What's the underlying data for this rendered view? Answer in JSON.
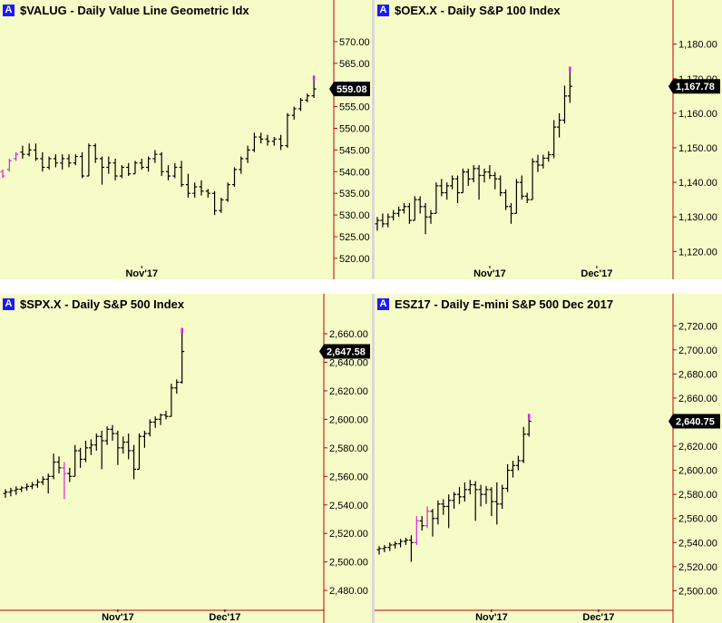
{
  "colors": {
    "background": "#f5fcc8",
    "bar": "#000000",
    "highlight_bar": "#e020e0",
    "axis_line": "#c00000",
    "badge": "#1a1aff",
    "last_price_box": "#000000"
  },
  "chart_data": [
    {
      "type": "ohlc",
      "badge": "A",
      "title": "$VALUG - Daily  Value Line Geometric Idx",
      "y_ticks": [
        520,
        525,
        530,
        535,
        540,
        545,
        550,
        555,
        560,
        565,
        570
      ],
      "y_tick_labels": [
        "520.00",
        "525.00",
        "530.00",
        "535.00",
        "540.00",
        "545.00",
        "550.00",
        "555.00",
        "560.00",
        "565.00",
        "570.00"
      ],
      "ylim": [
        516,
        575
      ],
      "x_ticks": [
        {
          "label": "Nov'17",
          "index": 21
        }
      ],
      "last_label": "559.08",
      "last_value": 559.08,
      "grid": false,
      "highlight_indices": [
        0,
        1,
        2,
        67
      ],
      "bars": [
        [
          540,
          540.5,
          538.5,
          539.0
        ],
        [
          540.5,
          543.0,
          540.0,
          542.5
        ],
        [
          543.0,
          544.5,
          542.5,
          544.0
        ],
        [
          544.5,
          546.0,
          543.0,
          544.0
        ],
        [
          544.0,
          546.5,
          543.5,
          545.0
        ],
        [
          545.0,
          546.5,
          542.5,
          543.0
        ],
        [
          543.0,
          544.5,
          540.0,
          541.0
        ],
        [
          541.0,
          543.5,
          540.5,
          543.0
        ],
        [
          543.0,
          544.0,
          541.0,
          542.0
        ],
        [
          542.0,
          544.0,
          540.5,
          543.0
        ],
        [
          543.0,
          544.0,
          541.0,
          542.0
        ],
        [
          542.0,
          544.0,
          541.5,
          543.5
        ],
        [
          543.5,
          544.5,
          538.5,
          539.0
        ],
        [
          539.0,
          546.5,
          539.0,
          546.0
        ],
        [
          546.0,
          546.5,
          542.0,
          543.0
        ],
        [
          543.0,
          543.5,
          537.0,
          541.0
        ],
        [
          541.0,
          543.5,
          539.5,
          542.0
        ],
        [
          542.0,
          543.0,
          538.0,
          539.0
        ],
        [
          539.0,
          541.5,
          538.5,
          541.0
        ],
        [
          541.0,
          542.0,
          539.0,
          539.5
        ],
        [
          539.5,
          542.5,
          539.5,
          542.0
        ],
        [
          542.0,
          543.0,
          540.5,
          541.0
        ],
        [
          541.0,
          543.5,
          540.0,
          543.0
        ],
        [
          543.0,
          545.0,
          542.0,
          544.0
        ],
        [
          544.0,
          544.5,
          539.0,
          540.0
        ],
        [
          540.0,
          541.5,
          538.0,
          539.0
        ],
        [
          539.0,
          542.0,
          538.5,
          541.0
        ],
        [
          541.0,
          542.5,
          536.5,
          537.0
        ],
        [
          537.0,
          539.5,
          534.0,
          535.0
        ],
        [
          535.0,
          537.5,
          534.0,
          536.5
        ],
        [
          536.5,
          538.0,
          534.5,
          535.5
        ],
        [
          535.5,
          536.0,
          534.0,
          535.0
        ],
        [
          535.0,
          535.5,
          530.0,
          531.0
        ],
        [
          531.0,
          534.0,
          530.5,
          533.5
        ],
        [
          533.5,
          537.5,
          533.0,
          537.0
        ],
        [
          537.0,
          541.0,
          536.5,
          540.5
        ],
        [
          540.5,
          543.5,
          539.5,
          543.0
        ],
        [
          543.0,
          546.0,
          542.0,
          545.0
        ],
        [
          545.0,
          549.0,
          544.5,
          548.0
        ],
        [
          548.0,
          549.0,
          546.5,
          547.5
        ],
        [
          547.5,
          548.5,
          546.0,
          547.0
        ],
        [
          547.0,
          548.0,
          546.0,
          547.5
        ],
        [
          547.5,
          548.5,
          545.0,
          546.0
        ],
        [
          546.0,
          553.5,
          545.5,
          553.0
        ],
        [
          553.0,
          555.0,
          552.0,
          554.5
        ],
        [
          554.5,
          557.0,
          554.0,
          556.5
        ],
        [
          556.5,
          558.0,
          556.0,
          557.5
        ],
        [
          557.5,
          561.0,
          557.0,
          559.08
        ]
      ]
    },
    {
      "type": "ohlc",
      "badge": "A",
      "title": "$OEX.X - Daily  S&P 100 Index",
      "y_ticks": [
        1120,
        1130,
        1140,
        1150,
        1160,
        1170,
        1180
      ],
      "y_tick_labels": [
        "1,120.00",
        "1,130.00",
        "1,140.00",
        "1,150.00",
        "1,160.00",
        "1,170.00",
        "1,180.00"
      ],
      "ylim": [
        1113,
        1187
      ],
      "x_ticks": [
        {
          "label": "Nov'17",
          "index": 21
        },
        {
          "label": "Dec'17",
          "index": 41
        }
      ],
      "last_label": "1,167.78",
      "last_value": 1167.78,
      "grid": false,
      "highlight_indices": [
        46
      ],
      "bars": [
        [
          1128,
          1130,
          1126,
          1129
        ],
        [
          1129,
          1131,
          1127,
          1128
        ],
        [
          1128,
          1131,
          1127,
          1130
        ],
        [
          1130,
          1132,
          1129,
          1131
        ],
        [
          1131,
          1133,
          1130,
          1132
        ],
        [
          1132,
          1134,
          1131,
          1133
        ],
        [
          1133,
          1134,
          1128,
          1129
        ],
        [
          1129,
          1136,
          1129,
          1135
        ],
        [
          1135,
          1136,
          1131,
          1133
        ],
        [
          1133,
          1134,
          1125,
          1130
        ],
        [
          1130,
          1132,
          1128,
          1131
        ],
        [
          1131,
          1140,
          1131,
          1139
        ],
        [
          1139,
          1141,
          1136,
          1137
        ],
        [
          1137,
          1140,
          1135,
          1139
        ],
        [
          1139,
          1142,
          1138,
          1141
        ],
        [
          1141,
          1142,
          1134,
          1137
        ],
        [
          1137,
          1144,
          1137,
          1143
        ],
        [
          1143,
          1144,
          1139,
          1141
        ],
        [
          1141,
          1145,
          1140,
          1144
        ],
        [
          1144,
          1145,
          1135,
          1142
        ],
        [
          1142,
          1144,
          1140,
          1143
        ],
        [
          1143,
          1145,
          1141,
          1142
        ],
        [
          1142,
          1143,
          1138,
          1141
        ],
        [
          1141,
          1142,
          1136,
          1137
        ],
        [
          1137,
          1138,
          1132,
          1133
        ],
        [
          1133,
          1134,
          1128,
          1131
        ],
        [
          1131,
          1141,
          1131,
          1140
        ],
        [
          1140,
          1142,
          1135,
          1136
        ],
        [
          1136,
          1137,
          1134,
          1135
        ],
        [
          1135,
          1147,
          1135,
          1146
        ],
        [
          1146,
          1148,
          1143,
          1145
        ],
        [
          1145,
          1148,
          1144,
          1147
        ],
        [
          1147,
          1149,
          1146,
          1148
        ],
        [
          1148,
          1158,
          1147,
          1156
        ],
        [
          1156,
          1160,
          1153,
          1158
        ],
        [
          1158,
          1168,
          1157,
          1165
        ],
        [
          1165,
          1172,
          1163,
          1167.78
        ]
      ]
    },
    {
      "type": "ohlc",
      "badge": "A",
      "title": "$SPX.X - Daily  S&P 500 Index",
      "y_ticks": [
        2480,
        2500,
        2520,
        2540,
        2560,
        2580,
        2600,
        2620,
        2640,
        2660
      ],
      "y_tick_labels": [
        "2,480.00",
        "2,500.00",
        "2,520.00",
        "2,540.00",
        "2,560.00",
        "2,580.00",
        "2,600.00",
        "2,620.00",
        "2,640.00",
        "2,660.00"
      ],
      "ylim": [
        2468,
        2674
      ],
      "x_ticks": [
        {
          "label": "Nov'17",
          "index": 21
        },
        {
          "label": "Dec'17",
          "index": 41
        }
      ],
      "last_label": "2,647.58",
      "last_value": 2647.58,
      "grid": false,
      "highlight_indices": [
        11,
        46
      ],
      "bars": [
        [
          2548,
          2551,
          2545,
          2549
        ],
        [
          2549,
          2552,
          2546,
          2550
        ],
        [
          2550,
          2553,
          2547,
          2551
        ],
        [
          2551,
          2553,
          2549,
          2552
        ],
        [
          2552,
          2555,
          2550,
          2553
        ],
        [
          2553,
          2556,
          2551,
          2554
        ],
        [
          2554,
          2558,
          2552,
          2556
        ],
        [
          2556,
          2560,
          2554,
          2558
        ],
        [
          2558,
          2562,
          2548,
          2560
        ],
        [
          2560,
          2576,
          2558,
          2570
        ],
        [
          2570,
          2574,
          2562,
          2566
        ],
        [
          2566,
          2570,
          2544,
          2562
        ],
        [
          2562,
          2566,
          2556,
          2560
        ],
        [
          2560,
          2582,
          2560,
          2578
        ],
        [
          2578,
          2580,
          2566,
          2572
        ],
        [
          2572,
          2585,
          2570,
          2580
        ],
        [
          2580,
          2586,
          2575,
          2582
        ],
        [
          2582,
          2590,
          2578,
          2588
        ],
        [
          2588,
          2592,
          2565,
          2585
        ],
        [
          2585,
          2595,
          2582,
          2593
        ],
        [
          2593,
          2596,
          2585,
          2590
        ],
        [
          2590,
          2592,
          2568,
          2580
        ],
        [
          2580,
          2588,
          2576,
          2584
        ],
        [
          2584,
          2590,
          2572,
          2578
        ],
        [
          2578,
          2582,
          2558,
          2565
        ],
        [
          2565,
          2590,
          2565,
          2588
        ],
        [
          2588,
          2592,
          2580,
          2590
        ],
        [
          2590,
          2600,
          2588,
          2598
        ],
        [
          2598,
          2602,
          2594,
          2600
        ],
        [
          2600,
          2604,
          2596,
          2603
        ],
        [
          2603,
          2606,
          2600,
          2602
        ],
        [
          2602,
          2625,
          2602,
          2622
        ],
        [
          2622,
          2628,
          2618,
          2626
        ],
        [
          2626,
          2660,
          2625,
          2647.58
        ]
      ]
    },
    {
      "type": "ohlc",
      "badge": "A",
      "title": "ESZ17 - Daily  E-mini S&P 500 Dec 2017",
      "y_ticks": [
        2500,
        2520,
        2540,
        2560,
        2580,
        2600,
        2620,
        2640,
        2660,
        2680,
        2700,
        2720
      ],
      "y_tick_labels": [
        "2,500.00",
        "2,520.00",
        "2,540.00",
        "2,560.00",
        "2,580.00",
        "2,600.00",
        "2,620.00",
        "2,640.00",
        "2,660.00",
        "2,680.00",
        "2,700.00",
        "2,720.00"
      ],
      "ylim": [
        2486,
        2730
      ],
      "x_ticks": [
        {
          "label": "Nov'17",
          "index": 21
        },
        {
          "label": "Dec'17",
          "index": 41
        }
      ],
      "last_label": "2,640.75",
      "last_value": 2640.75,
      "grid": false,
      "highlight_indices": [
        7,
        9,
        48
      ],
      "bars": [
        [
          2534,
          2537,
          2530,
          2535
        ],
        [
          2535,
          2538,
          2532,
          2536
        ],
        [
          2536,
          2540,
          2533,
          2538
        ],
        [
          2538,
          2541,
          2535,
          2539
        ],
        [
          2539,
          2543,
          2536,
          2541
        ],
        [
          2541,
          2544,
          2538,
          2542
        ],
        [
          2542,
          2546,
          2524,
          2540
        ],
        [
          2540,
          2562,
          2538,
          2558
        ],
        [
          2558,
          2562,
          2550,
          2554
        ],
        [
          2554,
          2570,
          2552,
          2566
        ],
        [
          2566,
          2568,
          2545,
          2560
        ],
        [
          2560,
          2575,
          2555,
          2572
        ],
        [
          2572,
          2576,
          2563,
          2570
        ],
        [
          2570,
          2580,
          2552,
          2575
        ],
        [
          2575,
          2582,
          2568,
          2580
        ],
        [
          2580,
          2586,
          2572,
          2578
        ],
        [
          2578,
          2590,
          2574,
          2584
        ],
        [
          2584,
          2592,
          2580,
          2588
        ],
        [
          2588,
          2591,
          2558,
          2584
        ],
        [
          2584,
          2588,
          2570,
          2580
        ],
        [
          2580,
          2587,
          2572,
          2584
        ],
        [
          2584,
          2586,
          2562,
          2574
        ],
        [
          2574,
          2590,
          2555,
          2572
        ],
        [
          2572,
          2588,
          2568,
          2585
        ],
        [
          2585,
          2605,
          2582,
          2600
        ],
        [
          2600,
          2608,
          2594,
          2604
        ],
        [
          2604,
          2612,
          2600,
          2608
        ],
        [
          2608,
          2636,
          2606,
          2630
        ],
        [
          2630,
          2642,
          2628,
          2640.75
        ]
      ]
    }
  ]
}
